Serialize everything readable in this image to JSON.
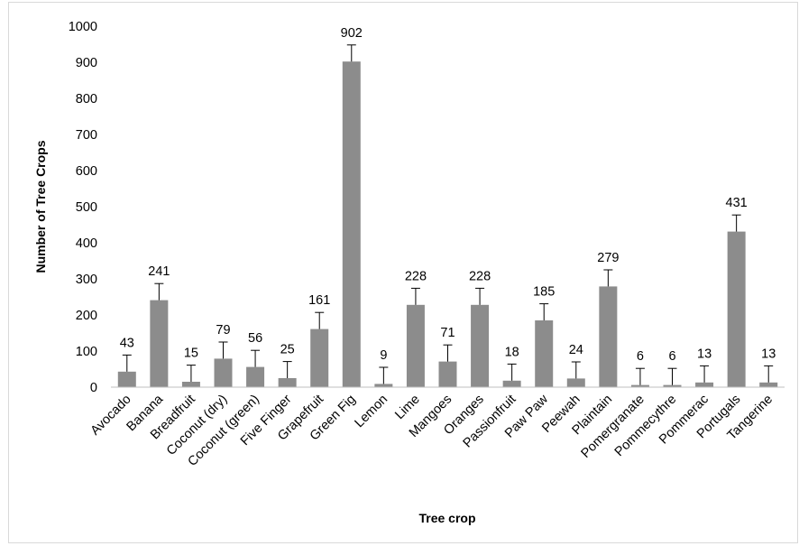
{
  "chart_data": {
    "type": "bar",
    "title": "",
    "xlabel": "Tree crop",
    "ylabel": "Number of Tree Crops",
    "categories": [
      "Avocado",
      "Banana",
      "Breadfruit",
      "Coconut (dry)",
      "Coconut (green)",
      "Five Finger",
      "Grapefruit",
      "Green Fig",
      "Lemon",
      "Lime",
      "Mangoes",
      "Oranges",
      "Passionfruit",
      "Paw Paw",
      "Peewah",
      "Plaintain",
      "Pomergranate",
      "Pommecythre",
      "Pommerac",
      "Portugals",
      "Tangerine"
    ],
    "values": [
      43,
      241,
      15,
      79,
      56,
      25,
      161,
      902,
      9,
      228,
      71,
      228,
      18,
      185,
      24,
      279,
      6,
      6,
      13,
      431,
      13
    ],
    "data_labels": [
      "43",
      "241",
      "15",
      "79",
      "56",
      "25",
      "161",
      "902",
      "9",
      "228",
      "71",
      "228",
      "18",
      "185",
      "24",
      "279",
      "6",
      "6",
      "13",
      "431",
      "13"
    ],
    "error_bar_plus": 46,
    "ylim": [
      0,
      1000
    ],
    "yticks": [
      0,
      100,
      200,
      300,
      400,
      500,
      600,
      700,
      800,
      900,
      1000
    ],
    "ytick_labels": [
      "0",
      "100",
      "200",
      "300",
      "400",
      "500",
      "600",
      "700",
      "800",
      "900",
      "1000"
    ],
    "grid": false,
    "legend": "none",
    "bar_color": "#8c8c8c",
    "axis_color": "#bfbfbf"
  }
}
